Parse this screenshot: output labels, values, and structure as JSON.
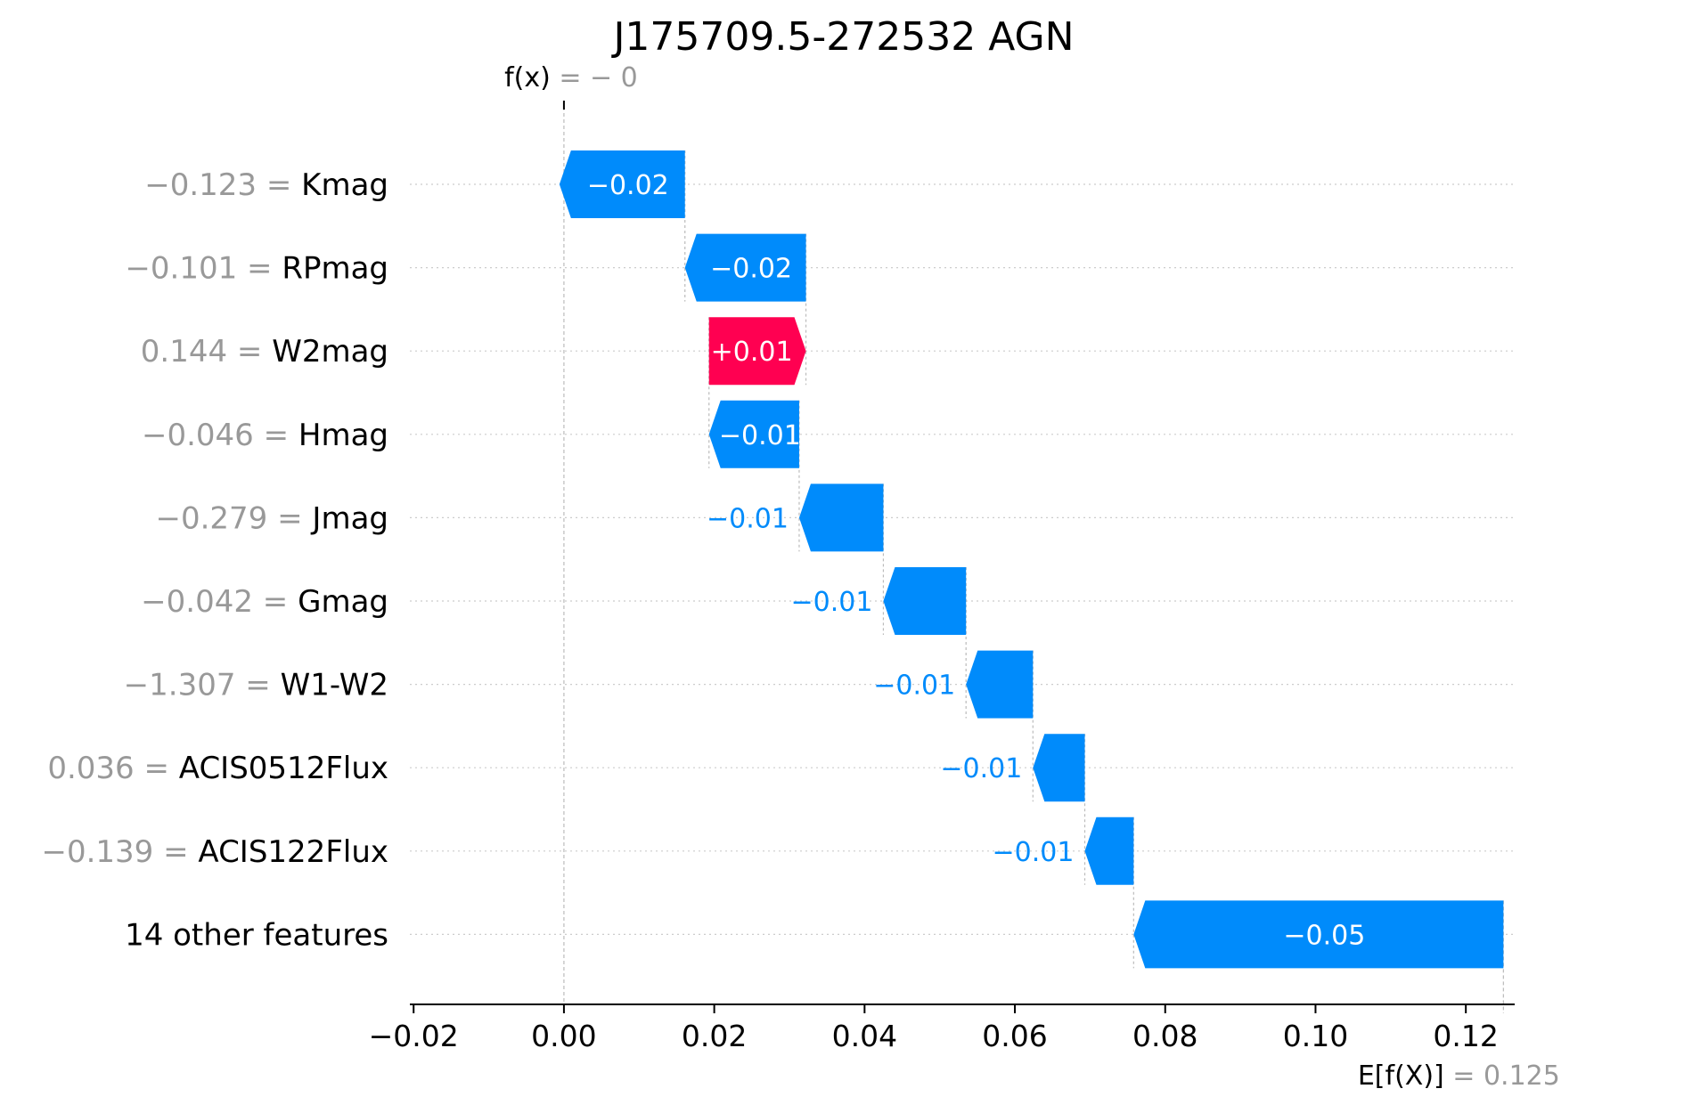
{
  "chart_data": {
    "type": "waterfall",
    "title": "J175709.5-272532 AGN",
    "base_value": {
      "label_math": "E[f(X)]",
      "label_eq": " = ",
      "value_text": "0.125",
      "value": 0.125
    },
    "output_value": {
      "label_math": "f(x)",
      "label_eq": " = ",
      "value_text": "− 0",
      "value": 0.0
    },
    "features": [
      {
        "name": "Kmag",
        "value_text": "−0.123",
        "contribution": -0.0167,
        "label": "−0.02"
      },
      {
        "name": "RPmag",
        "value_text": "−0.101",
        "contribution": -0.0161,
        "label": "−0.02"
      },
      {
        "name": "W2mag",
        "value_text": "0.144",
        "contribution": 0.0129,
        "label": "+0.01"
      },
      {
        "name": "Hmag",
        "value_text": "−0.046",
        "contribution": -0.012,
        "label": "−0.01"
      },
      {
        "name": "Jmag",
        "value_text": "−0.279",
        "contribution": -0.0112,
        "label": "−0.01"
      },
      {
        "name": "Gmag",
        "value_text": "−0.042",
        "contribution": -0.011,
        "label": "−0.01"
      },
      {
        "name": "W1-W2",
        "value_text": "−1.307",
        "contribution": -0.0089,
        "label": "−0.01"
      },
      {
        "name": "ACIS0512Flux",
        "value_text": "0.036",
        "contribution": -0.0069,
        "label": "−0.01"
      },
      {
        "name": "ACIS122Flux",
        "value_text": "−0.139",
        "contribution": -0.0065,
        "label": "−0.01"
      },
      {
        "name": "14 other features",
        "value_text": "",
        "contribution": -0.0492,
        "label": "−0.05"
      }
    ],
    "xlim": [
      -0.0205,
      0.1265
    ],
    "xticks": [
      -0.02,
      0.0,
      0.02,
      0.04,
      0.06,
      0.08,
      0.1,
      0.12
    ],
    "xtick_labels": [
      "−0.02",
      "0.00",
      "0.02",
      "0.04",
      "0.06",
      "0.08",
      "0.10",
      "0.12"
    ],
    "colors": {
      "negative": "#008bfb",
      "positive": "#ff0051",
      "base_text": "#999999"
    }
  }
}
